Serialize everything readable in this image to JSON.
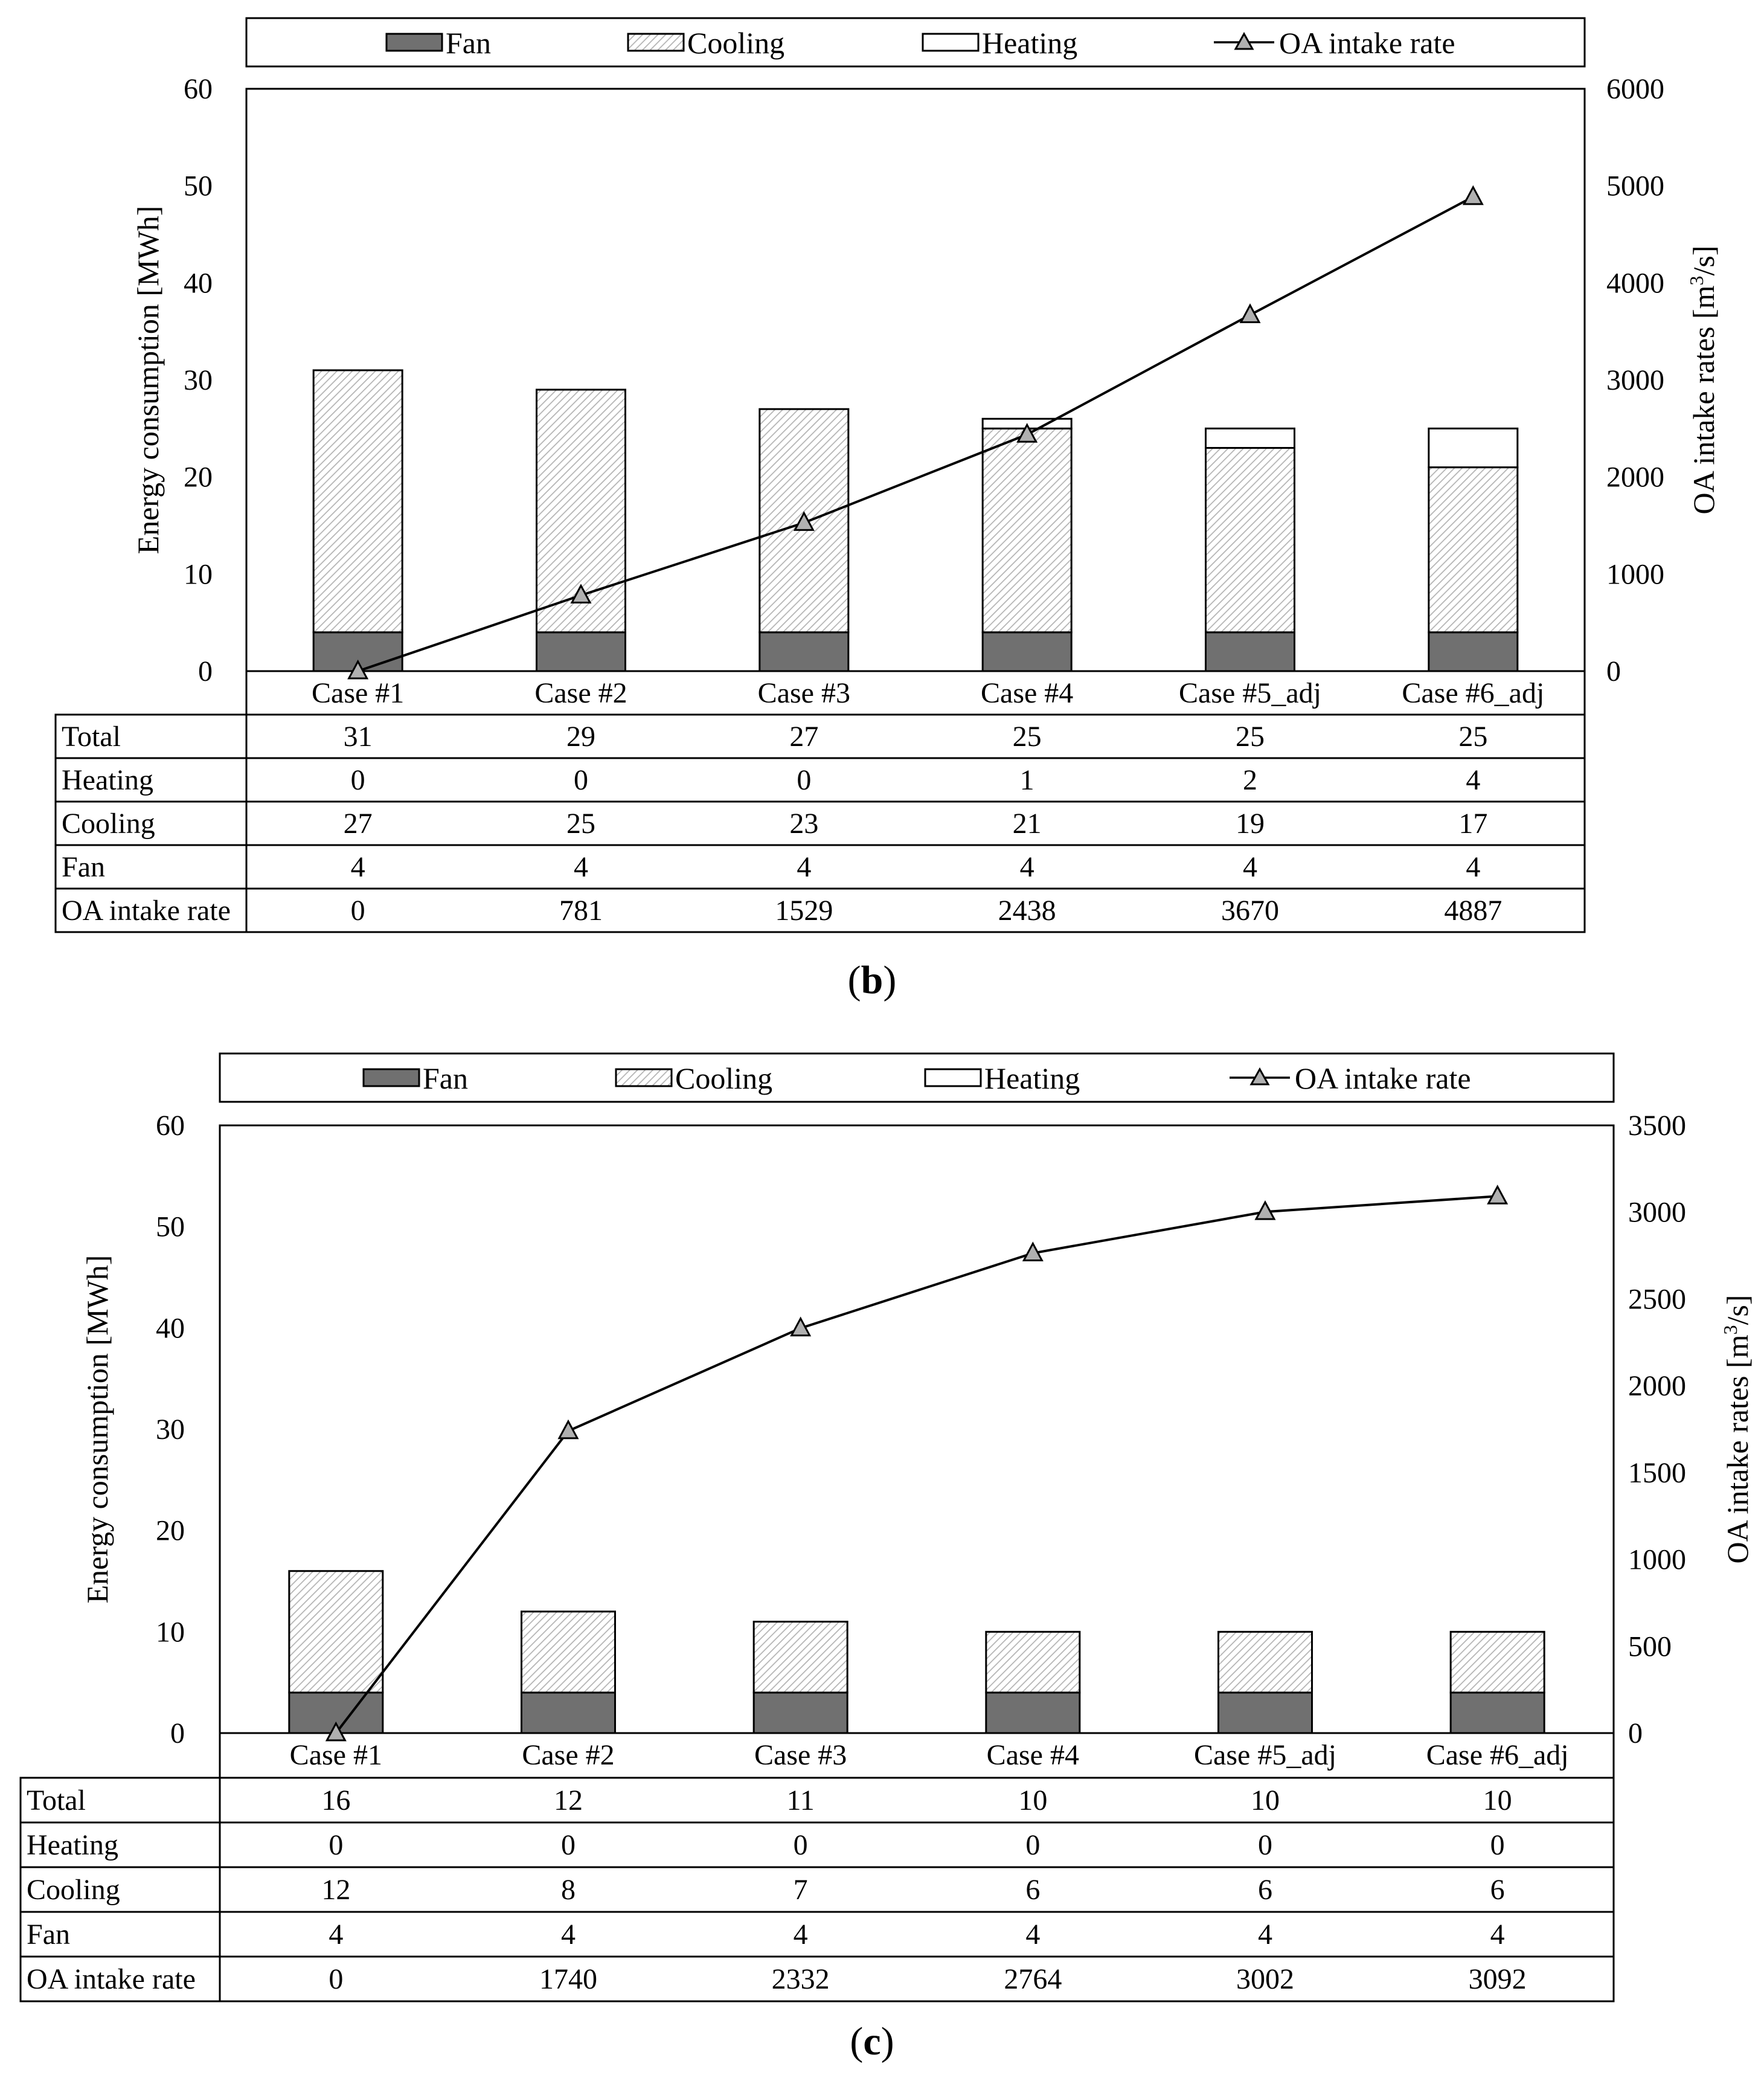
{
  "figures": [
    {
      "panel": "b",
      "caption_open": "(",
      "caption_letter": "b",
      "caption_close": ")"
    },
    {
      "panel": "c",
      "caption_open": "(",
      "caption_letter": "c",
      "caption_close": ")"
    }
  ],
  "chart_data": [
    {
      "type": "bar",
      "stacked": true,
      "title": "",
      "categories": [
        "Case #1",
        "Case #2",
        "Case #3",
        "Case #4",
        "Case #5_adj",
        "Case #6_adj"
      ],
      "series": [
        {
          "name": "Fan",
          "values": [
            4,
            4,
            4,
            4,
            4,
            4
          ]
        },
        {
          "name": "Cooling",
          "values": [
            27,
            25,
            23,
            21,
            19,
            17
          ]
        },
        {
          "name": "Heating",
          "values": [
            0,
            0,
            0,
            1,
            2,
            4
          ]
        }
      ],
      "line_series": {
        "name": "OA intake rate",
        "values": [
          0,
          781,
          1529,
          2438,
          3670,
          4887
        ],
        "axis": "right"
      },
      "ylabel": "Energy consumption [MWh]",
      "y2label_pre": "OA intake rates [m",
      "y2label_sup": "3",
      "y2label_post": "/s]",
      "ylim": [
        0,
        60
      ],
      "yticks": [
        0,
        10,
        20,
        30,
        40,
        50,
        60
      ],
      "y2lim": [
        0,
        6000
      ],
      "y2ticks": [
        0,
        1000,
        2000,
        3000,
        4000,
        5000,
        6000
      ],
      "legend": [
        "Fan",
        "Cooling",
        "Heating",
        "OA intake rate"
      ],
      "legend_position": "top",
      "table": {
        "rows": [
          {
            "label": "Total",
            "values": [
              "31",
              "29",
              "27",
              "25",
              "25",
              "25"
            ]
          },
          {
            "label": "Heating",
            "values": [
              "0",
              "0",
              "0",
              "1",
              "2",
              "4"
            ]
          },
          {
            "label": "Cooling",
            "values": [
              "27",
              "25",
              "23",
              "21",
              "19",
              "17"
            ]
          },
          {
            "label": "Fan",
            "values": [
              "4",
              "4",
              "4",
              "4",
              "4",
              "4"
            ]
          },
          {
            "label": "OA intake rate",
            "values": [
              "0",
              "781",
              "1529",
              "2438",
              "3670",
              "4887"
            ]
          }
        ]
      }
    },
    {
      "type": "bar",
      "stacked": true,
      "title": "",
      "categories": [
        "Case #1",
        "Case #2",
        "Case #3",
        "Case #4",
        "Case #5_adj",
        "Case #6_adj"
      ],
      "series": [
        {
          "name": "Fan",
          "values": [
            4,
            4,
            4,
            4,
            4,
            4
          ]
        },
        {
          "name": "Cooling",
          "values": [
            12,
            8,
            7,
            6,
            6,
            6
          ]
        },
        {
          "name": "Heating",
          "values": [
            0,
            0,
            0,
            0,
            0,
            0
          ]
        }
      ],
      "line_series": {
        "name": "OA intake rate",
        "values": [
          0,
          1740,
          2332,
          2764,
          3002,
          3092
        ],
        "axis": "right"
      },
      "ylabel": "Energy consumption [MWh]",
      "y2label_pre": "OA intake rates [m",
      "y2label_sup": "3",
      "y2label_post": "/s]",
      "ylim": [
        0,
        60
      ],
      "yticks": [
        0,
        10,
        20,
        30,
        40,
        50,
        60
      ],
      "y2lim": [
        0,
        3500
      ],
      "y2ticks": [
        0,
        500,
        1000,
        1500,
        2000,
        2500,
        3000,
        3500
      ],
      "legend": [
        "Fan",
        "Cooling",
        "Heating",
        "OA intake rate"
      ],
      "legend_position": "top",
      "table": {
        "rows": [
          {
            "label": "Total",
            "values": [
              "16",
              "12",
              "11",
              "10",
              "10",
              "10"
            ]
          },
          {
            "label": "Heating",
            "values": [
              "0",
              "0",
              "0",
              "0",
              "0",
              "0"
            ]
          },
          {
            "label": "Cooling",
            "values": [
              "12",
              "8",
              "7",
              "6",
              "6",
              "6"
            ]
          },
          {
            "label": "Fan",
            "values": [
              "4",
              "4",
              "4",
              "4",
              "4",
              "4"
            ]
          },
          {
            "label": "OA intake rate",
            "values": [
              "0",
              "1740",
              "2332",
              "2764",
              "3002",
              "3092"
            ]
          }
        ]
      }
    }
  ],
  "colors": {
    "fan": "#707070",
    "cooling_bg": "#ffffff",
    "cooling_hatch": "#b4b4b4",
    "heating": "#ffffff",
    "line": "#000000",
    "marker": "#b0b0b0",
    "stroke": "#000000"
  }
}
